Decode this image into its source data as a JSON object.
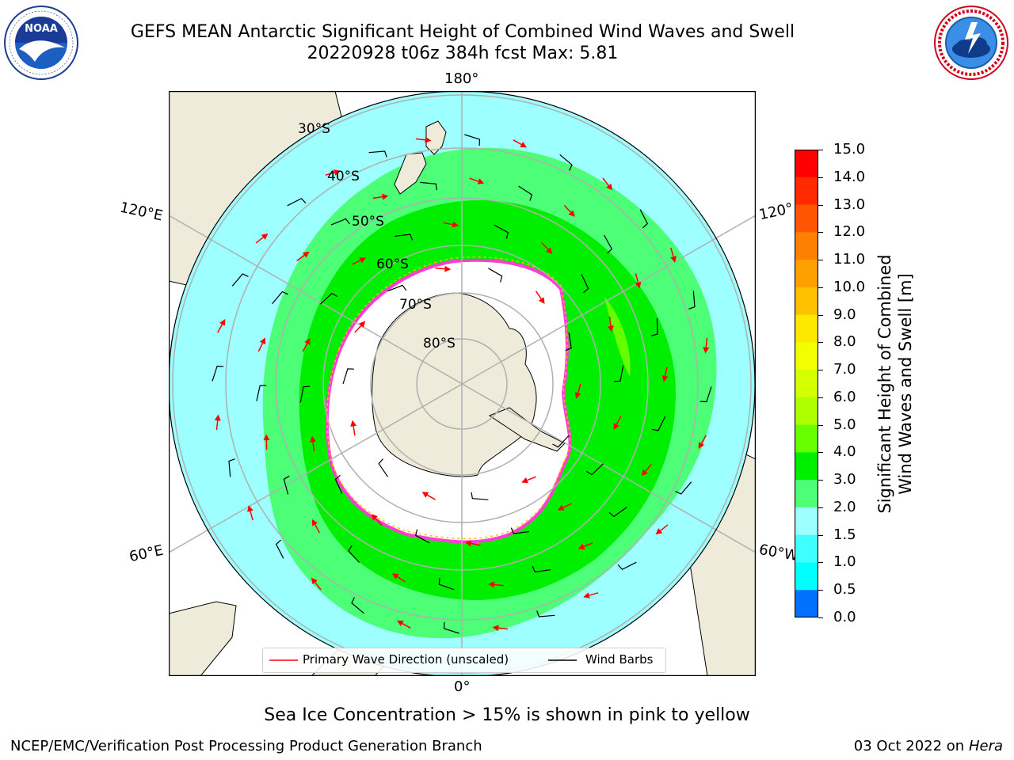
{
  "title": {
    "line1": "GEFS MEAN Antarctic Significant Height of Combined Wind Waves and Swell",
    "line2": "20220928 t06z 384h fcst   Max: 5.81"
  },
  "logos": {
    "noaa": {
      "text": "NOAA",
      "ring_text": "NATIONAL OCEANIC AND ATMOSPHERIC ADMINISTRATION · U.S. DEPARTMENT OF COMMERCE"
    },
    "nws": {
      "ring_text": "NATIONAL WEATHER SERVICE"
    }
  },
  "map": {
    "projection": "south polar stereographic",
    "longitude_labels": {
      "top": "180°",
      "bottom": "0°",
      "left_upper": "120°E",
      "left_lower": "60°E",
      "right_upper": "120°",
      "right_lower": "60°W"
    },
    "latitude_labels": [
      "30°S",
      "40°S",
      "50°S",
      "60°S",
      "70°S",
      "80°S"
    ],
    "colors": {
      "land": "#efebdb",
      "ice_edge_pink": "#ff3cd4",
      "ice_edge_yellow": "#ffc000",
      "wave_arrow": "#ff0000",
      "wind_barb": "#000000",
      "grid": "#b0b0b0"
    }
  },
  "legend": {
    "wave_direction": "Primary Wave Direction (unscaled)",
    "wind_barbs": "Wind Barbs"
  },
  "colorbar": {
    "label_line1": "Significant Height of Combined",
    "label_line2": "Wind Waves and Swell [m]",
    "ticks": [
      "15.0",
      "14.0",
      "13.0",
      "12.0",
      "11.0",
      "10.0",
      "9.0",
      "8.0",
      "7.0",
      "6.0",
      "5.0",
      "4.0",
      "3.0",
      "2.0",
      "1.5",
      "1.0",
      "0.5",
      "0.0"
    ],
    "colors": [
      "#ff0000",
      "#ff2a00",
      "#ff5500",
      "#ff8000",
      "#ffa000",
      "#ffc000",
      "#ffe800",
      "#f2ff00",
      "#d4ff00",
      "#b0ff00",
      "#66ff00",
      "#00ee00",
      "#4cff76",
      "#9dffff",
      "#40ffff",
      "#00ffff",
      "#0070ff",
      "#0000ff"
    ]
  },
  "note": "Sea Ice Concentration > 15% is shown in pink to yellow",
  "footer": {
    "left": "NCEP/EMC/Verification Post Processing Product Generation Branch",
    "right_date": "03 Oct 2022 on ",
    "right_machine": "Hera"
  }
}
